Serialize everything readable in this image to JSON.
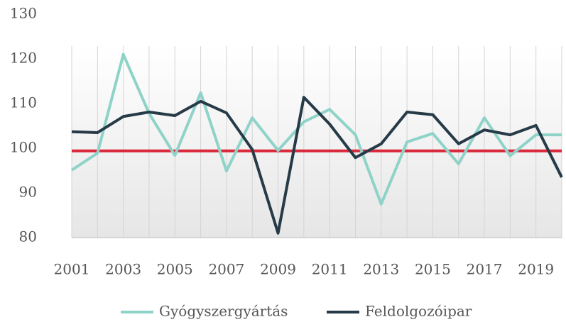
{
  "chart_data": {
    "type": "line",
    "x": [
      2001,
      2002,
      2003,
      2004,
      2005,
      2006,
      2007,
      2008,
      2009,
      2010,
      2011,
      2012,
      2013,
      2014,
      2015,
      2016,
      2017,
      2018,
      2019,
      2020
    ],
    "xlim": [
      2001,
      2020
    ],
    "xticks": [
      2001,
      2003,
      2005,
      2007,
      2009,
      2011,
      2013,
      2015,
      2017,
      2019
    ],
    "ylim": [
      80,
      130
    ],
    "yticks": [
      80,
      90,
      100,
      110,
      120,
      130
    ],
    "series": [
      {
        "name": "Gyógyszergyártás",
        "color": "#8fd3c8",
        "values": [
          95.1,
          98.9,
          121,
          107.8,
          98.4,
          112.4,
          94.9,
          106.8,
          99.5,
          105.9,
          108.7,
          103,
          87.5,
          101.4,
          103.3,
          96.5,
          106.8,
          98.3,
          103,
          103
        ]
      },
      {
        "name": "Feldolgozóipar",
        "color": "#263a47",
        "values": [
          103.7,
          103.5,
          107.1,
          108.1,
          107.3,
          110.5,
          107.9,
          99.7,
          81,
          111.4,
          105.4,
          97.9,
          101,
          108.1,
          107.5,
          101,
          104.1,
          103,
          105.1,
          93.5
        ]
      }
    ],
    "reference_line": {
      "value": 99.4,
      "color": "#d9283a"
    },
    "vertical_grid": true,
    "legend": "bottom"
  }
}
